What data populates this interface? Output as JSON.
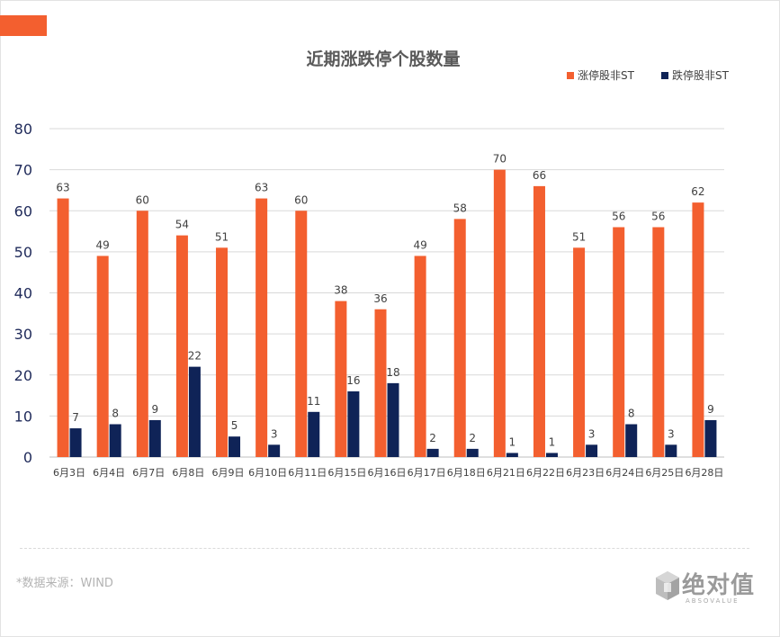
{
  "colors": {
    "accent": "#f35f2f",
    "limit_up": "#f35f2f",
    "limit_down": "#0f2357",
    "axis_text": "#1f2a5a",
    "grid": "#d9d9d9"
  },
  "chart_data": {
    "type": "bar",
    "title": "近期涨跌停个股数量",
    "categories": [
      "6月3日",
      "6月4日",
      "6月7日",
      "6月8日",
      "6月9日",
      "6月10日",
      "6月11日",
      "6月15日",
      "6月16日",
      "6月17日",
      "6月18日",
      "6月21日",
      "6月22日",
      "6月23日",
      "6月24日",
      "6月25日",
      "6月28日"
    ],
    "series": [
      {
        "name": "涨停股非ST",
        "values": [
          63,
          49,
          60,
          54,
          51,
          63,
          60,
          38,
          36,
          49,
          58,
          70,
          66,
          51,
          56,
          56,
          62
        ]
      },
      {
        "name": "跌停股非ST",
        "values": [
          7,
          8,
          9,
          22,
          5,
          3,
          11,
          16,
          18,
          2,
          2,
          1,
          1,
          3,
          8,
          3,
          9
        ]
      }
    ],
    "ylim": [
      0,
      80
    ],
    "yticks": [
      "0",
      "10",
      "20",
      "30",
      "40",
      "50",
      "60",
      "70",
      "80"
    ],
    "xlabel": "",
    "ylabel": "",
    "grid": true,
    "legend_position": "top-right"
  },
  "footer": {
    "source": "*数据来源：WIND"
  },
  "logo": {
    "text": "绝对值",
    "subtext": "ABSOVALUE"
  }
}
